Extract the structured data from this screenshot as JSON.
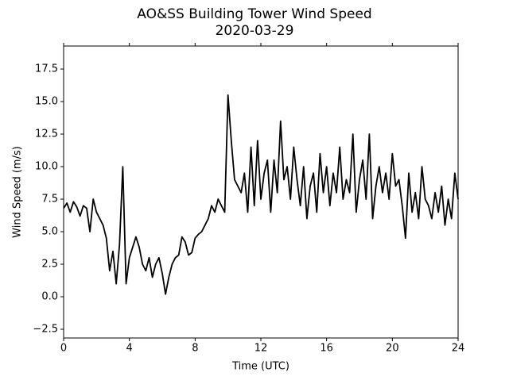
{
  "chart_data": {
    "type": "line",
    "title": "AO&SS Building Tower Wind Speed",
    "subtitle": "2020-03-29",
    "x_label": "Time (UTC)",
    "y_label": "Wind Speed (m/s)",
    "xlim": [
      0,
      24
    ],
    "xticks": [
      0,
      4,
      8,
      12,
      16,
      20,
      24
    ],
    "ylim": [
      -3.17,
      19.27
    ],
    "yticks": [
      {
        "value": -2.5,
        "label": "−2.5"
      },
      {
        "value": 0,
        "label": "0.0"
      },
      2.5,
      {
        "value": 5,
        "label": "5.0"
      },
      7.5,
      {
        "value": 10,
        "label": "10.0"
      },
      12.5,
      {
        "value": 15,
        "label": "15.0"
      },
      17.5
    ],
    "x": [
      0,
      0.2,
      0.4,
      0.6,
      0.8,
      1,
      1.2,
      1.4,
      1.6,
      1.8,
      2,
      2.2,
      2.4,
      2.6,
      2.8,
      3,
      3.2,
      3.4,
      3.6,
      3.8,
      4,
      4.2,
      4.4,
      4.6,
      4.8,
      5,
      5.2,
      5.4,
      5.6,
      5.8,
      6,
      6.2,
      6.4,
      6.6,
      6.8,
      7,
      7.2,
      7.4,
      7.6,
      7.8,
      8,
      8.2,
      8.4,
      8.6,
      8.8,
      9,
      9.2,
      9.4,
      9.6,
      9.8,
      10,
      10.2,
      10.4,
      10.6,
      10.8,
      11,
      11.2,
      11.4,
      11.6,
      11.8,
      12,
      12.2,
      12.4,
      12.6,
      12.8,
      13,
      13.2,
      13.4,
      13.6,
      13.8,
      14,
      14.2,
      14.4,
      14.6,
      14.8,
      15,
      15.2,
      15.4,
      15.6,
      15.8,
      16,
      16.2,
      16.4,
      16.6,
      16.8,
      17,
      17.2,
      17.4,
      17.6,
      17.8,
      18,
      18.2,
      18.4,
      18.6,
      18.8,
      19,
      19.2,
      19.4,
      19.6,
      19.8,
      20,
      20.2,
      20.4,
      20.6,
      20.8,
      21,
      21.2,
      21.4,
      21.6,
      21.8,
      22,
      22.2,
      22.4,
      22.6,
      22.8,
      23,
      23.2,
      23.4,
      23.6,
      23.8,
      24
    ],
    "series": [
      {
        "color": "#000000",
        "values": [
          6.8,
          7.2,
          6.5,
          7.3,
          6.9,
          6.2,
          7.0,
          6.8,
          5.0,
          7.5,
          6.5,
          6.0,
          5.5,
          4.5,
          2.0,
          3.5,
          1.0,
          4.0,
          10.0,
          1.0,
          3.0,
          3.8,
          4.6,
          3.8,
          2.5,
          2.0,
          3.0,
          1.5,
          2.5,
          3.0,
          1.8,
          0.2,
          1.5,
          2.5,
          3.0,
          3.2,
          4.6,
          4.2,
          3.2,
          3.4,
          4.5,
          4.8,
          5.0,
          5.5,
          6.0,
          7.0,
          6.5,
          7.5,
          7.0,
          6.5,
          15.5,
          12.0,
          9.0,
          8.5,
          8.0,
          9.5,
          6.5,
          11.5,
          7.0,
          12.0,
          7.5,
          9.5,
          10.5,
          6.5,
          10.5,
          8.0,
          13.5,
          9.0,
          10.0,
          7.5,
          11.5,
          9.0,
          7.0,
          10.0,
          6.0,
          8.5,
          9.5,
          6.5,
          11.0,
          8.0,
          10.0,
          7.0,
          9.5,
          8.0,
          11.5,
          7.5,
          9.0,
          8.0,
          12.5,
          6.5,
          9.0,
          10.5,
          7.5,
          12.5,
          6.0,
          8.5,
          10.0,
          8.0,
          9.5,
          7.5,
          11.0,
          8.5,
          9.0,
          7.0,
          4.5,
          9.5,
          6.5,
          8.0,
          6.0,
          10.0,
          7.5,
          7.0,
          6.0,
          8.0,
          6.5,
          8.5,
          5.5,
          7.5,
          6.0,
          9.5,
          7.5
        ]
      }
    ]
  }
}
